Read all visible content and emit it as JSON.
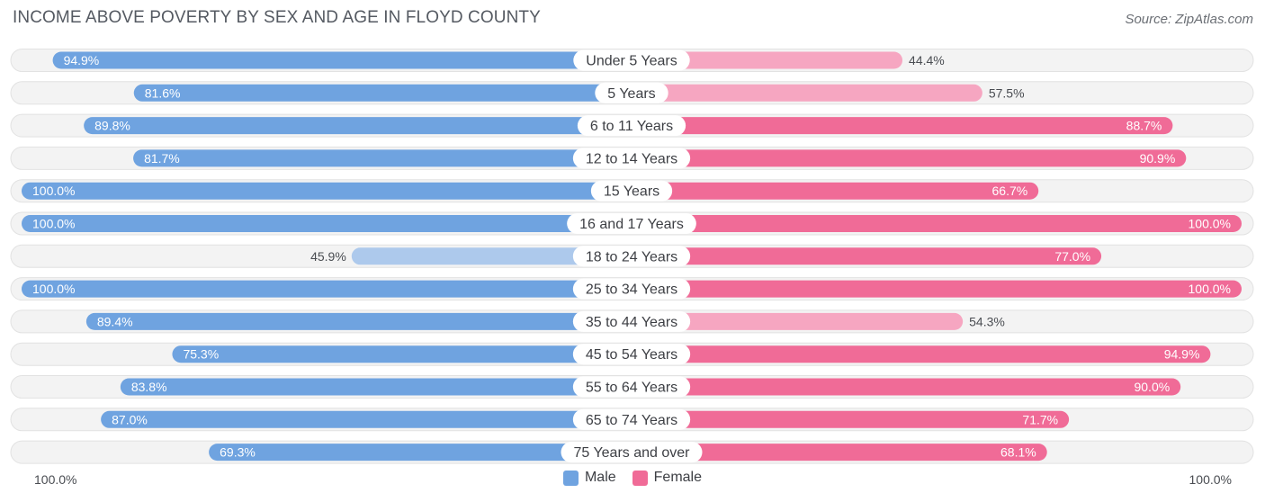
{
  "header": {
    "title": "INCOME ABOVE POVERTY BY SEX AND AGE IN FLOYD COUNTY",
    "source": "Source: ZipAtlas.com"
  },
  "colors": {
    "male_strong": "#6fa3e0",
    "male_light": "#adc9ec",
    "female_strong": "#f06b97",
    "female_light": "#f6a6c1",
    "track": "#efefef"
  },
  "axis": {
    "left_label": "100.0%",
    "right_label": "100.0%"
  },
  "legend": {
    "male": "Male",
    "female": "Female"
  },
  "chart_data": {
    "type": "bar",
    "orientation": "horizontal-diverging",
    "title": "INCOME ABOVE POVERTY BY SEX AND AGE IN FLOYD COUNTY",
    "xlim": [
      0,
      100
    ],
    "categories": [
      "Under 5 Years",
      "5 Years",
      "6 to 11 Years",
      "12 to 14 Years",
      "15 Years",
      "16 and 17 Years",
      "18 to 24 Years",
      "25 to 34 Years",
      "35 to 44 Years",
      "45 to 54 Years",
      "55 to 64 Years",
      "65 to 74 Years",
      "75 Years and over"
    ],
    "series": [
      {
        "name": "Male",
        "values": [
          94.9,
          81.6,
          89.8,
          81.7,
          100.0,
          100.0,
          45.9,
          100.0,
          89.4,
          75.3,
          83.8,
          87.0,
          69.3
        ],
        "labels": [
          "94.9%",
          "81.6%",
          "89.8%",
          "81.7%",
          "100.0%",
          "100.0%",
          "45.9%",
          "100.0%",
          "89.4%",
          "75.3%",
          "83.8%",
          "87.0%",
          "69.3%"
        ]
      },
      {
        "name": "Female",
        "values": [
          44.4,
          57.5,
          88.7,
          90.9,
          66.7,
          100.0,
          77.0,
          100.0,
          54.3,
          94.9,
          90.0,
          71.7,
          68.1
        ],
        "labels": [
          "44.4%",
          "57.5%",
          "88.7%",
          "90.9%",
          "66.7%",
          "100.0%",
          "77.0%",
          "100.0%",
          "54.3%",
          "94.9%",
          "90.0%",
          "71.7%",
          "68.1%"
        ]
      }
    ],
    "legend": [
      "Male",
      "Female"
    ]
  }
}
